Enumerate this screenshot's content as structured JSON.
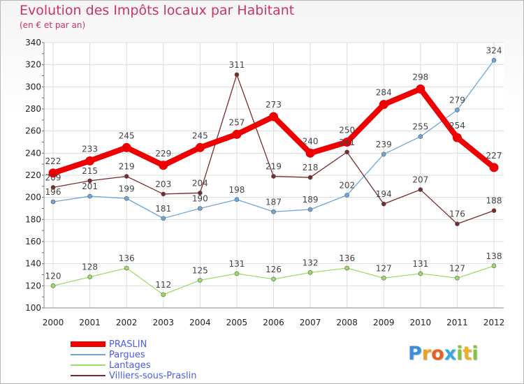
{
  "header": {
    "title": "Evolution des Impôts locaux par Habitant",
    "subtitle": "(en € et par an)"
  },
  "chart_data": {
    "type": "line",
    "title": "Evolution des Impôts locaux par Habitant",
    "subtitle": "(en € et par an)",
    "x": [
      "2000",
      "2001",
      "2002",
      "2003",
      "2004",
      "2005",
      "2006",
      "2007",
      "2008",
      "2009",
      "2010",
      "2011",
      "2012"
    ],
    "yticks": [
      100,
      120,
      140,
      160,
      180,
      200,
      220,
      240,
      260,
      280,
      300,
      320,
      340
    ],
    "ylim": [
      100,
      340
    ],
    "grid": true,
    "legend_position": "bottom-left",
    "series": [
      {
        "name": "PRASLIN",
        "color": "#ee0000",
        "emphasis": true,
        "values": [
          222,
          233,
          245,
          229,
          245,
          257,
          273,
          240,
          250,
          284,
          298,
          254,
          227
        ]
      },
      {
        "name": "Pargues",
        "color": "#6ea6d8",
        "values": [
          196,
          201,
          199,
          181,
          190,
          198,
          187,
          189,
          202,
          239,
          255,
          279,
          324
        ]
      },
      {
        "name": "Lantages",
        "color": "#99dd66",
        "values": [
          120,
          128,
          136,
          112,
          125,
          131,
          126,
          132,
          136,
          127,
          131,
          127,
          138
        ]
      },
      {
        "name": "Villiers-sous-Praslin",
        "color": "#7a2a2a",
        "values": [
          209,
          215,
          219,
          203,
          204,
          311,
          219,
          218,
          241,
          194,
          207,
          176,
          188
        ]
      }
    ]
  },
  "logo": {
    "letters": [
      {
        "char": "P",
        "color": "#3a8fd8"
      },
      {
        "char": "r",
        "color": "#f0a020"
      },
      {
        "char": "o",
        "color": "#e86020"
      },
      {
        "char": "x",
        "color": "#3aa8e0"
      },
      {
        "char": "i",
        "color": "#88c040"
      },
      {
        "char": "t",
        "color": "#f0b020"
      },
      {
        "char": "i",
        "color": "#88c040"
      }
    ]
  }
}
